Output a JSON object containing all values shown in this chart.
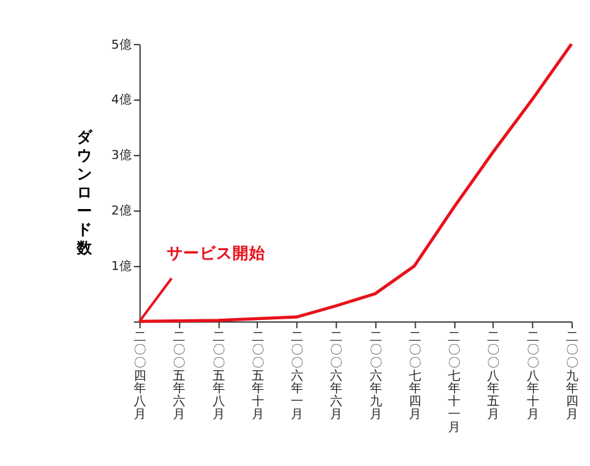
{
  "chart_data": {
    "type": "line",
    "ylabel": "ダウンロード数",
    "categories": [
      "二〇〇四年八月",
      "二〇〇五年六月",
      "二〇〇五年八月",
      "二〇〇五年十月",
      "二〇〇六年一月",
      "二〇〇六年六月",
      "二〇〇六年九月",
      "二〇〇七年四月",
      "二〇〇七年十一月",
      "二〇〇八年五月",
      "二〇〇八年十月",
      "二〇〇九年四月"
    ],
    "series": [
      {
        "color": "#e8101a",
        "values": [
          0,
          0.01,
          0.02,
          0.05,
          0.08,
          0.28,
          0.5,
          1.0,
          2.05,
          3.05,
          4.0,
          5.0
        ]
      }
    ],
    "ylim": [
      0,
      5
    ],
    "yticks": [
      {
        "value": 0,
        "label": null
      },
      {
        "value": 1,
        "label": "1億"
      },
      {
        "value": 2,
        "label": "2億"
      },
      {
        "value": 3,
        "label": "3億"
      },
      {
        "value": 4,
        "label": "4億"
      },
      {
        "value": 5,
        "label": "5億"
      }
    ],
    "grid": false,
    "marker": "none",
    "line_style": "solid",
    "annotations": [
      {
        "text": "サービス開始",
        "x": "二〇〇四年八月",
        "y": 0
      }
    ]
  }
}
